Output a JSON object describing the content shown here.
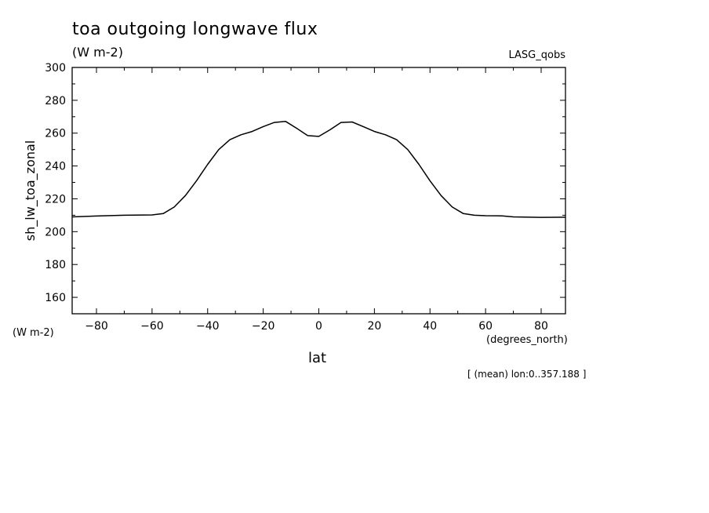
{
  "header": {
    "title": "toa outgoing longwave flux",
    "units": "(W m-2)",
    "dataset": "LASG_qobs"
  },
  "axes": {
    "y_units": "(W m-2)",
    "x_units": "(degrees_north)",
    "x_label": "lat",
    "y_label": "sh_lw_toa_zonal"
  },
  "footer": {
    "note": "[ (mean) lon:0..357.188 ]"
  },
  "chart_data": {
    "type": "line",
    "title": "toa outgoing longwave flux",
    "xlabel": "lat",
    "ylabel": "sh_lw_toa_zonal",
    "xlim": [
      -88.75,
      88.75
    ],
    "ylim": [
      150,
      300
    ],
    "x_ticks": [
      -80,
      -60,
      -40,
      -20,
      0,
      20,
      40,
      60,
      80
    ],
    "y_ticks": [
      160,
      180,
      200,
      220,
      240,
      260,
      280,
      300
    ],
    "grid": false,
    "series": [
      {
        "color": "#000000",
        "x": [
          -88.75,
          -80,
          -70,
          -60,
          -56,
          -52,
          -48,
          -44,
          -40,
          -36,
          -32,
          -28,
          -24,
          -20,
          -16,
          -12,
          -8,
          -4,
          0,
          4,
          8,
          12,
          16,
          20,
          24,
          28,
          32,
          36,
          40,
          44,
          48,
          52,
          56,
          60,
          66,
          70,
          80,
          88.75
        ],
        "values": [
          209,
          209.5,
          210,
          210.2,
          211,
          215,
          222,
          231,
          241,
          250,
          256,
          259,
          261,
          264,
          266.5,
          267.2,
          263,
          258.5,
          258,
          262,
          266.5,
          266.8,
          264,
          261,
          259,
          256,
          250,
          241,
          231,
          222,
          215,
          211,
          210,
          209.7,
          209.6,
          209,
          208.7,
          208.8
        ]
      }
    ]
  }
}
